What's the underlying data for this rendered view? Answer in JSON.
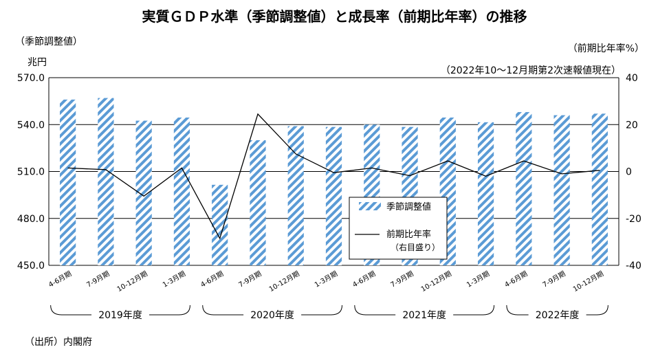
{
  "title": "実質ＧＤＰ水準（季節調整値）と成長率（前期比年率）の推移",
  "left_axis_label": "（季節調整値）",
  "left_axis_unit": "兆円",
  "right_axis_label": "（前期比年率%）",
  "note": "（2022年10～12月期第2次速報値現在）",
  "source": "（出所）内閣府",
  "colors": {
    "bar": "#5b9bd5",
    "line": "#000000",
    "grid": "#000000"
  },
  "chart_data": {
    "type": "bar",
    "categories": [
      "4-6月期",
      "7-9月期",
      "10-12月期",
      "1-3月期",
      "4-6月期",
      "7-9月期",
      "10-12月期",
      "1-3月期",
      "4-6月期",
      "7-9月期",
      "10-12月期",
      "1-3月期",
      "4-6月期",
      "7-9月期",
      "10-12月期"
    ],
    "fiscal_years": [
      {
        "label": "2019年度",
        "start": 0,
        "end": 3
      },
      {
        "label": "2020年度",
        "start": 4,
        "end": 7
      },
      {
        "label": "2021年度",
        "start": 8,
        "end": 11
      },
      {
        "label": "2022年度",
        "start": 12,
        "end": 14
      }
    ],
    "series": [
      {
        "name": "季節調整値",
        "type": "bar",
        "axis": "left",
        "values": [
          556.0,
          557.0,
          542.5,
          544.5,
          501.5,
          530.0,
          539.0,
          538.5,
          540.0,
          538.5,
          544.5,
          541.5,
          548.0,
          546.0,
          547.0
        ]
      },
      {
        "name": "前期比年率",
        "sublabel": "（右目盛り）",
        "type": "line",
        "axis": "right",
        "values": [
          1.5,
          0.8,
          -10.5,
          1.5,
          -28.5,
          24.5,
          7.5,
          -0.5,
          1.5,
          -1.8,
          4.5,
          -2.0,
          4.5,
          -1.0,
          0.5
        ]
      }
    ],
    "ylim_left": [
      450,
      570
    ],
    "yticks_left": [
      "570.0",
      "540.0",
      "510.0",
      "480.0",
      "450.0"
    ],
    "ylim_right": [
      -40,
      40
    ],
    "yticks_right": [
      "40",
      "20",
      "0",
      "-20",
      "-40"
    ],
    "grid": true
  }
}
